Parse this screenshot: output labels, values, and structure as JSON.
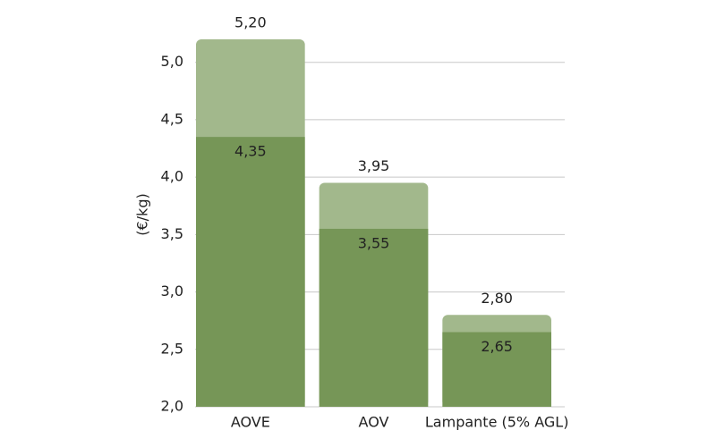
{
  "chart_data": {
    "type": "overlap-bar",
    "y_label": "(€/kg)",
    "categories": [
      "AOVE",
      "AOV",
      "Lampante (5% AGL)"
    ],
    "series": [
      {
        "color": "#a2b88c",
        "values": [
          5.2,
          3.95,
          2.8
        ],
        "value_labels": [
          "5,20",
          "3,95",
          "2,80"
        ]
      },
      {
        "color": "#769657",
        "values": [
          4.35,
          3.55,
          2.65
        ],
        "value_labels": [
          "4,35",
          "3,55",
          "2,65"
        ]
      }
    ],
    "ylim": [
      2.0,
      5.2
    ],
    "yticks": [
      {
        "value": 2.0,
        "label": "2,0"
      },
      {
        "value": 2.5,
        "label": "2,5"
      },
      {
        "value": 3.0,
        "label": "3,0"
      },
      {
        "value": 3.5,
        "label": "3,5"
      },
      {
        "value": 4.0,
        "label": "4,0"
      },
      {
        "value": 4.5,
        "label": "4,5"
      },
      {
        "value": 5.0,
        "label": "5,0"
      }
    ],
    "grid": true
  }
}
